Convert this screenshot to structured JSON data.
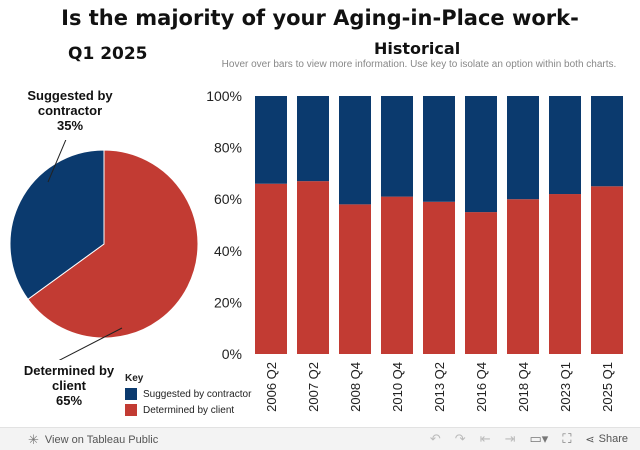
{
  "titles": {
    "main": "Is the majority of your Aging-in-Place work-",
    "pie": "Q1 2025",
    "historical": "Historical",
    "subtitle": "Hover over bars to view more information. Use key to isolate an option within both charts."
  },
  "pie_labels": {
    "suggested_line1": "Suggested by",
    "suggested_line2": "contractor",
    "suggested_pct": "35%",
    "determined_line1": "Determined by",
    "determined_line2": "client",
    "determined_pct": "65%"
  },
  "key": {
    "title": "Key",
    "items": [
      {
        "label": "Suggested by contractor",
        "color": "#0b3a6e"
      },
      {
        "label": "Determined by client",
        "color": "#c23b33"
      }
    ]
  },
  "footer": {
    "view_label": "View on Tableau Public",
    "share_label": "Share"
  },
  "chart_data": [
    {
      "type": "pie",
      "title": "Q1 2025",
      "slices": [
        {
          "name": "Suggested by contractor",
          "value": 35,
          "color": "#0b3a6e"
        },
        {
          "name": "Determined by client",
          "value": 65,
          "color": "#c23b33"
        }
      ]
    },
    {
      "type": "bar",
      "stacked": true,
      "title": "Historical",
      "categories": [
        "2006 Q2",
        "2007 Q2",
        "2008 Q4",
        "2010 Q4",
        "2013 Q2",
        "2016 Q4",
        "2018 Q4",
        "2023 Q1",
        "2025 Q1"
      ],
      "series": [
        {
          "name": "Determined by client",
          "color": "#c23b33",
          "values": [
            66,
            67,
            58,
            61,
            59,
            55,
            60,
            62,
            65
          ]
        },
        {
          "name": "Suggested by contractor",
          "color": "#0b3a6e",
          "values": [
            34,
            33,
            42,
            39,
            41,
            45,
            40,
            38,
            35
          ]
        }
      ],
      "yticks": [
        "0%",
        "20%",
        "40%",
        "60%",
        "80%",
        "100%"
      ],
      "ylim": [
        0,
        100
      ],
      "grid": false
    }
  ]
}
